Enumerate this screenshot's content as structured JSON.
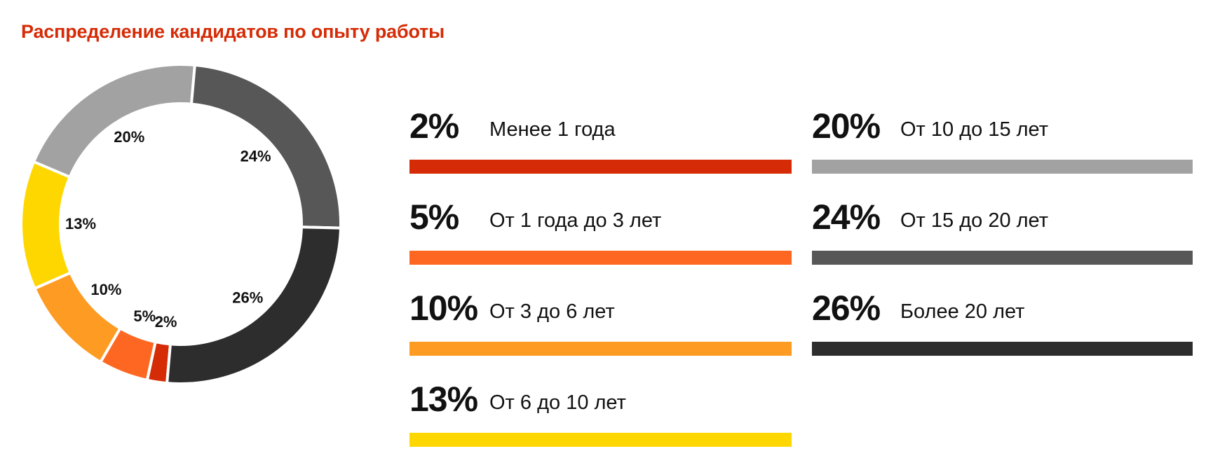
{
  "title": "Распределение кандидатов по опыту работы",
  "chart_data": {
    "type": "pie",
    "title": "Распределение кандидатов по опыту работы",
    "slices": [
      {
        "label": "Менее 1 года",
        "value": 2,
        "display": "2%",
        "color": "#d52b06"
      },
      {
        "label": "От 1 года до 3 лет",
        "value": 5,
        "display": "5%",
        "color": "#fd6721"
      },
      {
        "label": "От 3 до 6 лет",
        "value": 10,
        "display": "10%",
        "color": "#fd9b22"
      },
      {
        "label": "От 6 до 10 лет",
        "value": 13,
        "display": "13%",
        "color": "#ffd700"
      },
      {
        "label": "От 10 до 15 лет",
        "value": 20,
        "display": "20%",
        "color": "#a2a2a2"
      },
      {
        "label": "От 15 до 20 лет",
        "value": 24,
        "display": "24%",
        "color": "#575757"
      },
      {
        "label": "Более 20 лет",
        "value": 26,
        "display": "26%",
        "color": "#2d2d2d"
      }
    ]
  }
}
